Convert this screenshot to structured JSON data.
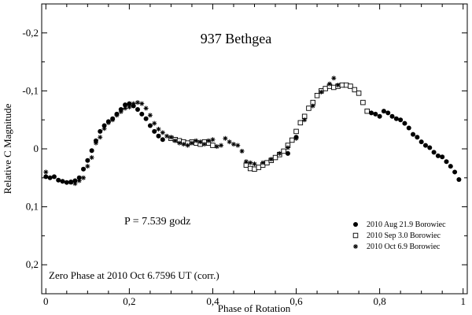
{
  "chart_data": {
    "type": "scatter",
    "title": "937 Bethgea",
    "xlabel": "Phase of Rotation",
    "ylabel": "Relative C Magnitude",
    "xlim": [
      -0.01,
      1.01
    ],
    "ylim": [
      0.25,
      -0.25
    ],
    "y_inverted": true,
    "x_ticks": [
      0,
      0.2,
      0.4,
      0.6,
      0.8,
      1
    ],
    "x_tick_labels": [
      "0",
      "0,2",
      "0,4",
      "0,6",
      "0,8",
      "1"
    ],
    "y_ticks": [
      -0.2,
      -0.1,
      0,
      0.1,
      0.2
    ],
    "y_tick_labels": [
      "-0,2",
      "-0,1",
      "0",
      "0,1",
      "0,2"
    ],
    "period_text": "P = 7.539 godz",
    "footer_text": "Zero Phase at 2010 Oct 6.7596 UT (corr.)",
    "legend_position": "bottom-right",
    "series": [
      {
        "name": "2010 Aug 21.9 Borowiec",
        "marker": "filled-circle",
        "points": [
          [
            0.0,
            0.048
          ],
          [
            0.01,
            0.05
          ],
          [
            0.02,
            0.048
          ],
          [
            0.03,
            0.054
          ],
          [
            0.04,
            0.056
          ],
          [
            0.05,
            0.058
          ],
          [
            0.06,
            0.057
          ],
          [
            0.07,
            0.055
          ],
          [
            0.08,
            0.05
          ],
          [
            0.09,
            0.035
          ],
          [
            0.1,
            0.02
          ],
          [
            0.11,
            0.003
          ],
          [
            0.12,
            -0.014
          ],
          [
            0.13,
            -0.03
          ],
          [
            0.14,
            -0.04
          ],
          [
            0.15,
            -0.047
          ],
          [
            0.16,
            -0.052
          ],
          [
            0.17,
            -0.06
          ],
          [
            0.18,
            -0.068
          ],
          [
            0.19,
            -0.076
          ],
          [
            0.2,
            -0.078
          ],
          [
            0.21,
            -0.074
          ],
          [
            0.22,
            -0.068
          ],
          [
            0.23,
            -0.06
          ],
          [
            0.24,
            -0.052
          ],
          [
            0.25,
            -0.04
          ],
          [
            0.26,
            -0.03
          ],
          [
            0.27,
            -0.022
          ],
          [
            0.28,
            -0.016
          ],
          [
            0.58,
            0.008
          ],
          [
            0.6,
            -0.02
          ],
          [
            0.78,
            -0.062
          ],
          [
            0.79,
            -0.06
          ],
          [
            0.8,
            -0.056
          ],
          [
            0.81,
            -0.065
          ],
          [
            0.82,
            -0.062
          ],
          [
            0.83,
            -0.056
          ],
          [
            0.84,
            -0.052
          ],
          [
            0.85,
            -0.05
          ],
          [
            0.86,
            -0.044
          ],
          [
            0.87,
            -0.036
          ],
          [
            0.88,
            -0.025
          ],
          [
            0.89,
            -0.02
          ],
          [
            0.9,
            -0.012
          ],
          [
            0.91,
            -0.006
          ],
          [
            0.92,
            -0.002
          ],
          [
            0.93,
            0.006
          ],
          [
            0.94,
            0.012
          ],
          [
            0.95,
            0.014
          ],
          [
            0.96,
            0.022
          ],
          [
            0.97,
            0.03
          ],
          [
            0.98,
            0.04
          ],
          [
            0.99,
            0.053
          ]
        ]
      },
      {
        "name": "2010 Sep 3.0 Borowiec",
        "marker": "open-square",
        "points": [
          [
            0.3,
            -0.018
          ],
          [
            0.31,
            -0.016
          ],
          [
            0.32,
            -0.014
          ],
          [
            0.33,
            -0.012
          ],
          [
            0.34,
            -0.01
          ],
          [
            0.35,
            -0.012
          ],
          [
            0.36,
            -0.01
          ],
          [
            0.37,
            -0.008
          ],
          [
            0.38,
            -0.012
          ],
          [
            0.39,
            -0.01
          ],
          [
            0.4,
            -0.006
          ],
          [
            0.48,
            0.028
          ],
          [
            0.49,
            0.034
          ],
          [
            0.5,
            0.035
          ],
          [
            0.51,
            0.032
          ],
          [
            0.52,
            0.028
          ],
          [
            0.53,
            0.024
          ],
          [
            0.54,
            0.02
          ],
          [
            0.55,
            0.015
          ],
          [
            0.56,
            0.01
          ],
          [
            0.57,
            0.004
          ],
          [
            0.58,
            -0.006
          ],
          [
            0.59,
            -0.015
          ],
          [
            0.6,
            -0.03
          ],
          [
            0.61,
            -0.045
          ],
          [
            0.62,
            -0.056
          ],
          [
            0.63,
            -0.07
          ],
          [
            0.64,
            -0.08
          ],
          [
            0.65,
            -0.092
          ],
          [
            0.66,
            -0.1
          ],
          [
            0.67,
            -0.104
          ],
          [
            0.68,
            -0.108
          ],
          [
            0.69,
            -0.106
          ],
          [
            0.7,
            -0.108
          ],
          [
            0.71,
            -0.11
          ],
          [
            0.72,
            -0.11
          ],
          [
            0.73,
            -0.108
          ],
          [
            0.74,
            -0.102
          ],
          [
            0.75,
            -0.096
          ],
          [
            0.76,
            -0.08
          ],
          [
            0.77,
            -0.065
          ]
        ]
      },
      {
        "name": "2010 Oct 6.9 Borowiec",
        "marker": "asterisk",
        "points": [
          [
            0.0,
            0.04
          ],
          [
            0.06,
            0.058
          ],
          [
            0.07,
            0.06
          ],
          [
            0.08,
            0.055
          ],
          [
            0.09,
            0.05
          ],
          [
            0.1,
            0.03
          ],
          [
            0.11,
            0.015
          ],
          [
            0.12,
            -0.01
          ],
          [
            0.13,
            -0.02
          ],
          [
            0.14,
            -0.035
          ],
          [
            0.15,
            -0.045
          ],
          [
            0.16,
            -0.05
          ],
          [
            0.17,
            -0.058
          ],
          [
            0.18,
            -0.064
          ],
          [
            0.19,
            -0.07
          ],
          [
            0.2,
            -0.072
          ],
          [
            0.21,
            -0.078
          ],
          [
            0.22,
            -0.08
          ],
          [
            0.23,
            -0.078
          ],
          [
            0.24,
            -0.07
          ],
          [
            0.25,
            -0.058
          ],
          [
            0.26,
            -0.044
          ],
          [
            0.27,
            -0.034
          ],
          [
            0.28,
            -0.028
          ],
          [
            0.29,
            -0.022
          ],
          [
            0.3,
            -0.02
          ],
          [
            0.31,
            -0.014
          ],
          [
            0.32,
            -0.01
          ],
          [
            0.33,
            -0.008
          ],
          [
            0.34,
            -0.006
          ],
          [
            0.35,
            -0.01
          ],
          [
            0.36,
            -0.014
          ],
          [
            0.37,
            -0.012
          ],
          [
            0.38,
            -0.008
          ],
          [
            0.39,
            -0.014
          ],
          [
            0.4,
            -0.016
          ],
          [
            0.41,
            -0.004
          ],
          [
            0.42,
            -0.006
          ],
          [
            0.43,
            -0.018
          ],
          [
            0.44,
            -0.012
          ],
          [
            0.45,
            -0.008
          ],
          [
            0.46,
            -0.006
          ],
          [
            0.47,
            0.004
          ],
          [
            0.48,
            0.022
          ],
          [
            0.49,
            0.024
          ],
          [
            0.5,
            0.026
          ],
          [
            0.52,
            0.024
          ],
          [
            0.54,
            0.018
          ],
          [
            0.56,
            0.008
          ],
          [
            0.58,
            -0.002
          ],
          [
            0.6,
            -0.018
          ],
          [
            0.62,
            -0.05
          ],
          [
            0.64,
            -0.074
          ],
          [
            0.66,
            -0.098
          ],
          [
            0.68,
            -0.112
          ],
          [
            0.69,
            -0.122
          ],
          [
            0.7,
            -0.11
          ]
        ]
      }
    ]
  }
}
